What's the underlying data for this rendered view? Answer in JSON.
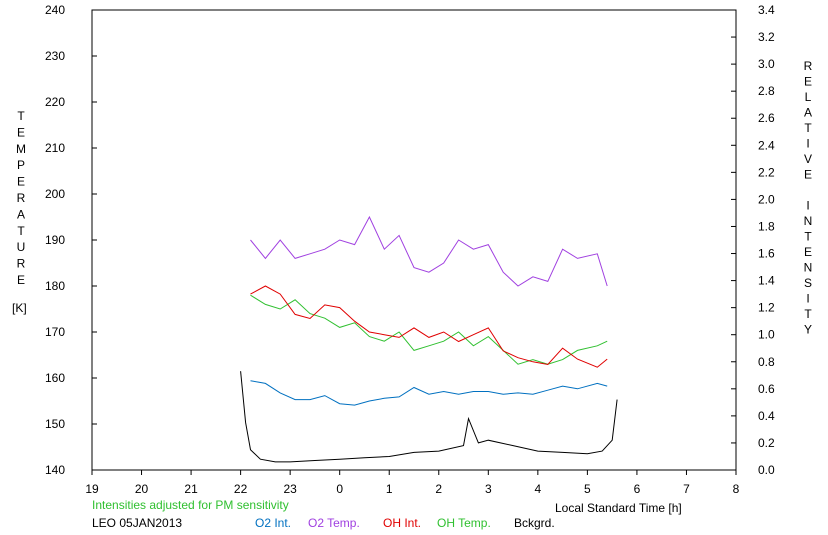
{
  "chart_data": {
    "type": "line",
    "left_axis": {
      "label": "TEMPERATURE",
      "unit": "[K]",
      "range": [
        140,
        240
      ],
      "ticks": [
        140,
        150,
        160,
        170,
        180,
        190,
        200,
        210,
        220,
        230,
        240
      ]
    },
    "right_axis": {
      "label": "RELATIVE INTENSITY",
      "range": [
        0.0,
        3.4
      ],
      "ticks": [
        "0.0",
        "0.2",
        "0.4",
        "0.6",
        "0.8",
        "1.0",
        "1.2",
        "1.4",
        "1.6",
        "1.8",
        "2.0",
        "2.2",
        "2.4",
        "2.6",
        "2.8",
        "3.0",
        "3.2",
        "3.4"
      ]
    },
    "x_axis": {
      "label": "Local Standard Time [h]",
      "range": [
        19,
        32
      ],
      "tick_labels": [
        "19",
        "20",
        "21",
        "22",
        "23",
        "0",
        "1",
        "2",
        "3",
        "4",
        "5",
        "6",
        "7",
        "8"
      ]
    },
    "note": "Intensities adjusted for PM sensitivity",
    "site_date": "LEO 05JAN2013",
    "legend": [
      {
        "key": "o2int",
        "label": "O2 Int.",
        "color": "#0070c0"
      },
      {
        "key": "o2temp",
        "label": "O2 Temp.",
        "color": "#a040e0"
      },
      {
        "key": "ohint",
        "label": "OH Int.",
        "color": "#e00000"
      },
      {
        "key": "ohtemp",
        "label": "OH Temp.",
        "color": "#30c030"
      },
      {
        "key": "bkg",
        "label": "Bckgrd.",
        "color": "#000000"
      }
    ],
    "series": [
      {
        "key": "o2temp",
        "axis": "left",
        "x": [
          22.2,
          22.5,
          22.8,
          23.1,
          23.4,
          23.7,
          24.0,
          24.3,
          24.6,
          24.9,
          25.2,
          25.5,
          25.8,
          26.1,
          26.4,
          26.7,
          27.0,
          27.3,
          27.6,
          27.9,
          28.2,
          28.5,
          28.8,
          29.2,
          29.4
        ],
        "y": [
          190,
          186,
          190,
          186,
          187,
          188,
          190,
          189,
          195,
          188,
          191,
          184,
          183,
          185,
          190,
          188,
          189,
          183,
          180,
          182,
          181,
          188,
          186,
          187,
          180
        ]
      },
      {
        "key": "ohtemp",
        "axis": "left",
        "x": [
          22.2,
          22.5,
          22.8,
          23.1,
          23.4,
          23.7,
          24.0,
          24.3,
          24.6,
          24.9,
          25.2,
          25.5,
          25.8,
          26.1,
          26.4,
          26.7,
          27.0,
          27.3,
          27.6,
          27.9,
          28.2,
          28.5,
          28.8,
          29.2,
          29.4
        ],
        "y": [
          178,
          176,
          175,
          177,
          174,
          173,
          171,
          172,
          169,
          168,
          170,
          166,
          167,
          168,
          170,
          167,
          169,
          166,
          163,
          164,
          163,
          164,
          166,
          167,
          168
        ]
      },
      {
        "key": "ohint",
        "axis": "right",
        "x": [
          22.2,
          22.5,
          22.8,
          23.1,
          23.4,
          23.7,
          24.0,
          24.3,
          24.6,
          24.9,
          25.2,
          25.5,
          25.8,
          26.1,
          26.4,
          26.7,
          27.0,
          27.3,
          27.6,
          27.9,
          28.2,
          28.5,
          28.8,
          29.2,
          29.4
        ],
        "y": [
          1.3,
          1.36,
          1.3,
          1.15,
          1.12,
          1.22,
          1.2,
          1.1,
          1.02,
          1.0,
          0.98,
          1.05,
          0.98,
          1.02,
          0.95,
          1.0,
          1.05,
          0.88,
          0.83,
          0.8,
          0.78,
          0.9,
          0.82,
          0.76,
          0.82
        ]
      },
      {
        "key": "o2int",
        "axis": "right",
        "x": [
          22.2,
          22.5,
          22.8,
          23.1,
          23.4,
          23.7,
          24.0,
          24.3,
          24.6,
          24.9,
          25.2,
          25.5,
          25.8,
          26.1,
          26.4,
          26.7,
          27.0,
          27.3,
          27.6,
          27.9,
          28.2,
          28.5,
          28.8,
          29.2,
          29.4
        ],
        "y": [
          0.66,
          0.64,
          0.57,
          0.52,
          0.52,
          0.55,
          0.49,
          0.48,
          0.51,
          0.53,
          0.54,
          0.61,
          0.56,
          0.58,
          0.56,
          0.58,
          0.58,
          0.56,
          0.57,
          0.56,
          0.59,
          0.62,
          0.6,
          0.64,
          0.62
        ]
      },
      {
        "key": "bkg",
        "axis": "right",
        "x": [
          22.0,
          22.1,
          22.2,
          22.4,
          22.7,
          23.0,
          23.5,
          24.0,
          24.5,
          25.0,
          25.5,
          26.0,
          26.5,
          26.6,
          26.8,
          27.0,
          27.5,
          28.0,
          28.5,
          29.0,
          29.3,
          29.5,
          29.6
        ],
        "y": [
          0.73,
          0.35,
          0.15,
          0.08,
          0.06,
          0.06,
          0.07,
          0.08,
          0.09,
          0.1,
          0.13,
          0.14,
          0.18,
          0.38,
          0.2,
          0.22,
          0.18,
          0.14,
          0.13,
          0.12,
          0.14,
          0.22,
          0.52
        ]
      }
    ]
  }
}
